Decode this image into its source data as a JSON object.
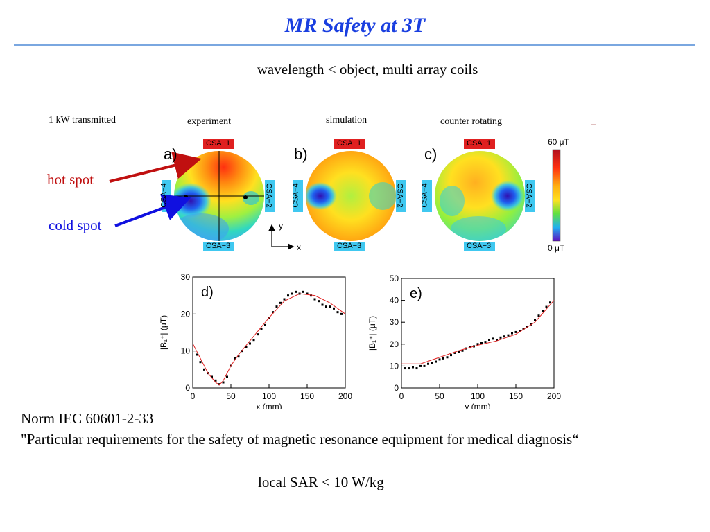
{
  "slide": {
    "title": "MR Safety at 3T",
    "subtitle": "wavelength < object, multi array coils",
    "caption_power": "1 kW transmitted",
    "caption_experiment": "experiment",
    "caption_simulation": "simulation",
    "caption_counter": "counter rotating",
    "hot_spot": "hot spot",
    "cold_spot": "cold spot",
    "norm_line1": "Norm IEC 60601-2-33",
    "norm_line2": "\"Particular requirements for the safety of magnetic resonance equipment for medical diagnosis“",
    "sar_line": "local SAR < 10 W/kg"
  },
  "maps": {
    "panels": [
      {
        "letter": "a)"
      },
      {
        "letter": "b)"
      },
      {
        "letter": "c)"
      }
    ],
    "coil_top": "CSA−1",
    "coil_right": "CSA−2",
    "coil_bottom": "CSA−3",
    "coil_left": "CSA−4",
    "axis_y": "y",
    "axis_x": "x",
    "colorbar_max": "60 μT",
    "colorbar_min": "0 μT",
    "colors": {
      "coil_red": "#e02020",
      "coil_cyan": "#40c8f0",
      "hot_arrow": "#c01010",
      "cold_arrow": "#1010e0"
    }
  },
  "chart_data": [
    {
      "type": "scatter",
      "title": "d)",
      "xlabel": "x (mm)",
      "ylabel": "|B₁⁺| (μT)",
      "xlim": [
        0,
        200
      ],
      "ylim": [
        0,
        30
      ],
      "xticks": [
        0,
        50,
        100,
        150,
        200
      ],
      "yticks": [
        0,
        10,
        20,
        30
      ],
      "series": [
        {
          "kind": "points",
          "x": [
            5,
            10,
            15,
            20,
            25,
            30,
            35,
            40,
            45,
            50,
            55,
            60,
            65,
            70,
            75,
            80,
            85,
            90,
            95,
            100,
            105,
            110,
            115,
            120,
            125,
            130,
            135,
            140,
            145,
            150,
            155,
            160,
            165,
            170,
            175,
            180,
            185,
            190,
            195
          ],
          "y": [
            9,
            7,
            5,
            4,
            3,
            2,
            1,
            1.5,
            3,
            6,
            8,
            8.5,
            10,
            11,
            12,
            13,
            14.5,
            16,
            17,
            19,
            20.5,
            22,
            23,
            24,
            25,
            25.5,
            26,
            25.5,
            26,
            25.5,
            25,
            24,
            23.5,
            22.5,
            22,
            22,
            21.5,
            20.5,
            20
          ]
        },
        {
          "kind": "fit",
          "x": [
            0,
            10,
            20,
            30,
            35,
            40,
            50,
            60,
            80,
            100,
            120,
            140,
            160,
            180,
            200
          ],
          "y": [
            12,
            8,
            4,
            1.5,
            0.8,
            2,
            6,
            9,
            14,
            19,
            23.5,
            25.5,
            25,
            23,
            20
          ]
        }
      ]
    },
    {
      "type": "scatter",
      "title": "e)",
      "xlabel": "y (mm)",
      "ylabel": "|B₁⁺| (μT)",
      "xlim": [
        0,
        200
      ],
      "ylim": [
        0,
        50
      ],
      "xticks": [
        0,
        50,
        100,
        150,
        200
      ],
      "yticks": [
        0,
        10,
        20,
        30,
        40,
        50
      ],
      "series": [
        {
          "kind": "points",
          "x": [
            5,
            10,
            15,
            20,
            25,
            30,
            35,
            40,
            45,
            50,
            55,
            60,
            65,
            70,
            75,
            80,
            85,
            90,
            95,
            100,
            105,
            110,
            115,
            120,
            125,
            130,
            135,
            140,
            145,
            150,
            155,
            160,
            165,
            170,
            175,
            180,
            185,
            190,
            195
          ],
          "y": [
            9,
            9,
            9.5,
            9,
            10,
            10,
            11,
            11.5,
            12,
            13,
            13.5,
            14,
            15,
            16,
            16.5,
            17,
            18,
            18.5,
            19,
            20,
            20.5,
            21,
            22,
            22.5,
            22,
            23,
            23.5,
            24,
            25,
            25.5,
            26,
            27,
            28,
            29,
            31,
            33,
            35,
            37,
            39
          ]
        },
        {
          "kind": "fit",
          "x": [
            0,
            25,
            50,
            75,
            100,
            125,
            150,
            175,
            200
          ],
          "y": [
            11,
            11,
            14,
            17,
            19.5,
            21.5,
            24.5,
            30,
            40
          ]
        }
      ]
    }
  ]
}
